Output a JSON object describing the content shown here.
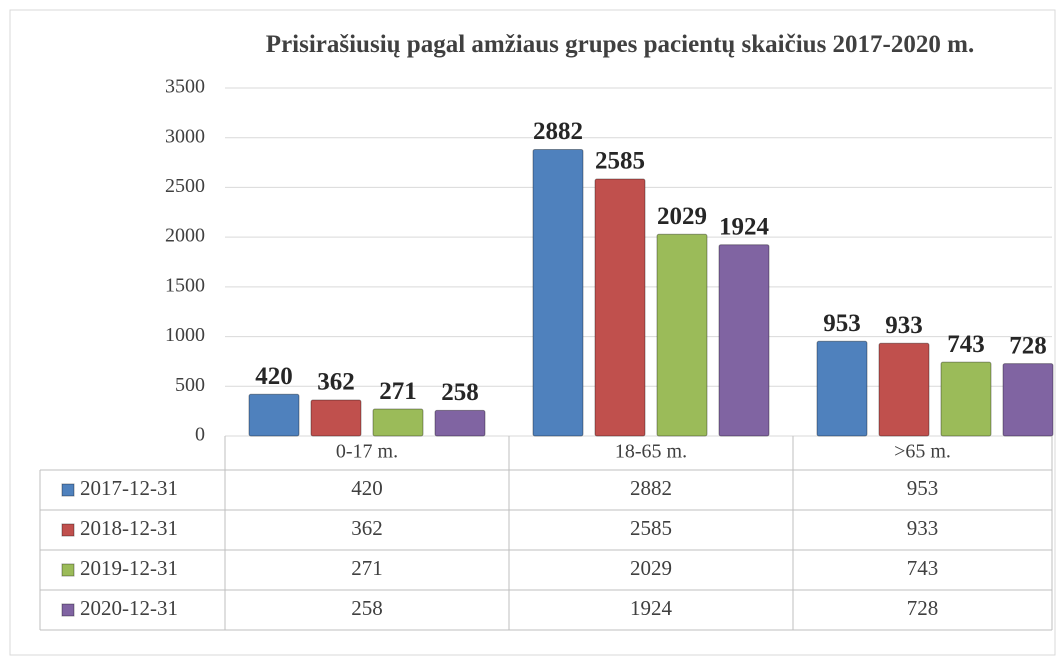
{
  "chart_data": {
    "type": "bar",
    "title": "Prisirašiusių pagal amžiaus grupes pacientų skaičius 2017-2020 m.",
    "categories": [
      "0-17 m.",
      "18-65 m.",
      ">65 m."
    ],
    "series": [
      {
        "name": "2017-12-31",
        "color": "#4f81bd",
        "values": [
          420,
          2882,
          953
        ]
      },
      {
        "name": "2018-12-31",
        "color": "#c0504d",
        "values": [
          362,
          2585,
          933
        ]
      },
      {
        "name": "2019-12-31",
        "color": "#9bbb59",
        "values": [
          271,
          2029,
          743
        ]
      },
      {
        "name": "2020-12-31",
        "color": "#8064a2",
        "values": [
          258,
          1924,
          728
        ]
      }
    ],
    "ylim": [
      0,
      3500
    ],
    "yticks": [
      0,
      500,
      1000,
      1500,
      2000,
      2500,
      3000,
      3500
    ],
    "grid": true,
    "data_table": true
  }
}
